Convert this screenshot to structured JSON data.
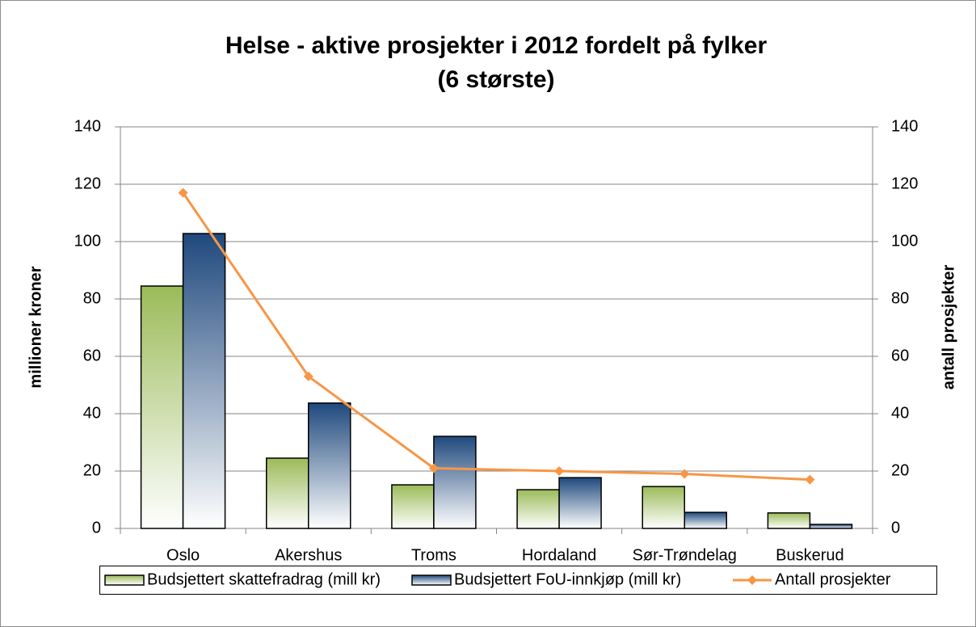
{
  "chart_data": {
    "type": "bar",
    "title_lines": [
      "Helse - aktive prosjekter i 2012 fordelt på fylker",
      "(6 største)"
    ],
    "y_label": "millioner kroner",
    "y2_label": "antall prosjekter",
    "categories": [
      "Oslo",
      "Akershus",
      "Troms",
      "Hordaland",
      "Sør-Trøndelag",
      "Buskerud"
    ],
    "series": [
      {
        "name": "Budsjettert skattefradrag (mill kr)",
        "color": "#9bbb59",
        "values": [
          84.5,
          24.5,
          15.2,
          13.5,
          14.6,
          5.4
        ]
      },
      {
        "name": "Budsjettert FoU-innkjøp (mill kr)",
        "color": "#1f497d",
        "values": [
          102.8,
          43.7,
          32.1,
          17.7,
          5.6,
          1.4
        ]
      },
      {
        "name": "Antall prosjekter",
        "color": "#f79646",
        "type": "line",
        "axis": "y2",
        "values": [
          117,
          53,
          21,
          20,
          19,
          17
        ]
      }
    ],
    "ylim": [
      0,
      140
    ],
    "yticks": [
      0,
      20,
      40,
      60,
      80,
      100,
      120,
      140
    ],
    "y2lim": [
      0,
      140
    ],
    "y2ticks": [
      0,
      20,
      40,
      60,
      80,
      100,
      120,
      140
    ],
    "grid": true,
    "legend": "bottom"
  }
}
